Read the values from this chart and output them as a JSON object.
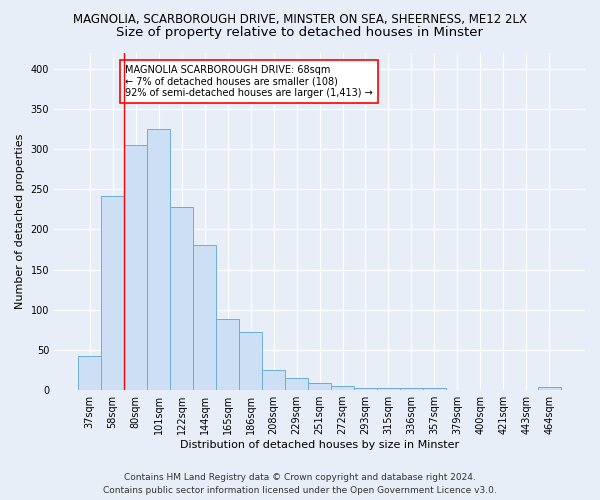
{
  "title_line1": "MAGNOLIA, SCARBOROUGH DRIVE, MINSTER ON SEA, SHEERNESS, ME12 2LX",
  "title_line2": "Size of property relative to detached houses in Minster",
  "xlabel": "Distribution of detached houses by size in Minster",
  "ylabel": "Number of detached properties",
  "categories": [
    "37sqm",
    "58sqm",
    "80sqm",
    "101sqm",
    "122sqm",
    "144sqm",
    "165sqm",
    "186sqm",
    "208sqm",
    "229sqm",
    "251sqm",
    "272sqm",
    "293sqm",
    "315sqm",
    "336sqm",
    "357sqm",
    "379sqm",
    "400sqm",
    "421sqm",
    "443sqm",
    "464sqm"
  ],
  "values": [
    42,
    242,
    305,
    325,
    228,
    180,
    88,
    72,
    25,
    15,
    9,
    5,
    3,
    3,
    2,
    3,
    0,
    0,
    0,
    0,
    4
  ],
  "bar_color": "#ccdff5",
  "bar_edge_color": "#6aaed6",
  "redline_x": 1.5,
  "annotation_text": "MAGNOLIA SCARBOROUGH DRIVE: 68sqm\n← 7% of detached houses are smaller (108)\n92% of semi-detached houses are larger (1,413) →",
  "annotation_box_color": "white",
  "annotation_box_edge_color": "red",
  "ylim": [
    0,
    420
  ],
  "yticks": [
    0,
    50,
    100,
    150,
    200,
    250,
    300,
    350,
    400
  ],
  "footer_line1": "Contains HM Land Registry data © Crown copyright and database right 2024.",
  "footer_line2": "Contains public sector information licensed under the Open Government Licence v3.0.",
  "background_color": "#e8eef8",
  "grid_color": "white",
  "title1_fontsize": 8.5,
  "title2_fontsize": 9.5,
  "axis_label_fontsize": 8,
  "tick_fontsize": 7,
  "annotation_fontsize": 7,
  "footer_fontsize": 6.5
}
